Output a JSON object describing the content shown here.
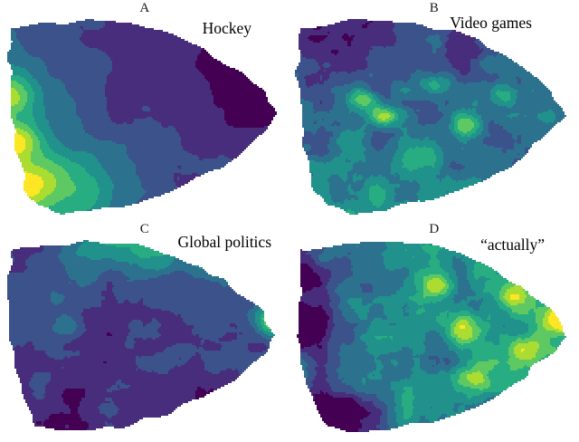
{
  "figure": {
    "background": "#ffffff",
    "description": "Four-panel contour density figure over a shared 2D embedding region, viridis colormap"
  },
  "chart_data": {
    "type": "heatmap",
    "colormap": "viridis",
    "legend": "none",
    "palette": [
      "#440154",
      "#472d7b",
      "#3b528b",
      "#2c728e",
      "#21918c",
      "#27ad81",
      "#5ec962",
      "#aadc32",
      "#fde725"
    ],
    "outline": [
      [
        0.03,
        0.08
      ],
      [
        0.15,
        0.045
      ],
      [
        0.3,
        0.03
      ],
      [
        0.46,
        0.045
      ],
      [
        0.6,
        0.1
      ],
      [
        0.72,
        0.18
      ],
      [
        0.83,
        0.28
      ],
      [
        0.92,
        0.38
      ],
      [
        0.97,
        0.5
      ],
      [
        0.9,
        0.6
      ],
      [
        0.82,
        0.7
      ],
      [
        0.72,
        0.79
      ],
      [
        0.6,
        0.86
      ],
      [
        0.47,
        0.92
      ],
      [
        0.33,
        0.96
      ],
      [
        0.2,
        0.97
      ],
      [
        0.115,
        0.94
      ],
      [
        0.075,
        0.85
      ],
      [
        0.045,
        0.7
      ],
      [
        0.025,
        0.5
      ],
      [
        0.02,
        0.3
      ],
      [
        0.025,
        0.15
      ]
    ],
    "panels": [
      {
        "label": "A",
        "title": "Hockey",
        "summary": "low density top-right (dark), high density along left edge and lower-left (green/yellow)",
        "field": {
          "seed": 7,
          "amp": 0.1,
          "scale": 5,
          "corners": [
            0.28,
            0.02,
            0.55,
            0.1
          ],
          "hotspots": [
            {
              "x": 0.02,
              "y": 0.4,
              "r": 0.1,
              "v": 0.45
            },
            {
              "x": 0.04,
              "y": 0.62,
              "r": 0.09,
              "v": 0.5
            },
            {
              "x": 0.06,
              "y": 0.85,
              "r": 0.12,
              "v": 0.4
            },
            {
              "x": 0.18,
              "y": 0.78,
              "r": 0.14,
              "v": 0.25
            },
            {
              "x": 0.3,
              "y": 0.9,
              "r": 0.12,
              "v": 0.15
            }
          ]
        }
      },
      {
        "label": "B",
        "title": "Video games",
        "summary": "dark top-left corner, speckled medium-high density through the middle with bright spots mid-left",
        "field": {
          "seed": 13,
          "amp": 0.22,
          "scale": 10,
          "corners": [
            0.08,
            0.32,
            0.55,
            0.48
          ],
          "hotspots": [
            {
              "x": 0.25,
              "y": 0.42,
              "r": 0.05,
              "v": 0.5
            },
            {
              "x": 0.33,
              "y": 0.5,
              "r": 0.05,
              "v": 0.4
            },
            {
              "x": 0.2,
              "y": 0.62,
              "r": 0.06,
              "v": 0.3
            },
            {
              "x": 0.5,
              "y": 0.35,
              "r": 0.05,
              "v": 0.3
            },
            {
              "x": 0.62,
              "y": 0.55,
              "r": 0.06,
              "v": 0.28
            },
            {
              "x": 0.45,
              "y": 0.7,
              "r": 0.07,
              "v": 0.25
            },
            {
              "x": 0.75,
              "y": 0.4,
              "r": 0.05,
              "v": 0.25
            }
          ]
        }
      },
      {
        "label": "C",
        "title": "Global politics",
        "summary": "mostly dark low density, greener band along the top edge, bright spot at the right tip",
        "field": {
          "seed": 21,
          "amp": 0.16,
          "scale": 8,
          "corners": [
            0.3,
            0.3,
            0.12,
            0.15
          ],
          "hotspots": [
            {
              "x": 0.35,
              "y": 0.04,
              "r": 0.12,
              "v": 0.25
            },
            {
              "x": 0.55,
              "y": 0.06,
              "r": 0.12,
              "v": 0.28
            },
            {
              "x": 0.75,
              "y": 0.14,
              "r": 0.1,
              "v": 0.25
            },
            {
              "x": 0.96,
              "y": 0.42,
              "r": 0.07,
              "v": 0.55
            },
            {
              "x": 0.22,
              "y": 0.45,
              "r": 0.05,
              "v": 0.22
            }
          ]
        }
      },
      {
        "label": "D",
        "title": "“actually”",
        "summary": "broad high density (green) with yellow hotspots toward the right, dark strip on the left edge and bottom-left",
        "field": {
          "seed": 33,
          "amp": 0.24,
          "scale": 10,
          "corners": [
            0.35,
            0.6,
            0.35,
            0.55
          ],
          "hotspots": [
            {
              "x": 0.95,
              "y": 0.4,
              "r": 0.07,
              "v": 0.5
            },
            {
              "x": 0.78,
              "y": 0.3,
              "r": 0.06,
              "v": 0.35
            },
            {
              "x": 0.82,
              "y": 0.55,
              "r": 0.06,
              "v": 0.35
            },
            {
              "x": 0.6,
              "y": 0.45,
              "r": 0.08,
              "v": 0.3
            },
            {
              "x": 0.65,
              "y": 0.7,
              "r": 0.07,
              "v": 0.3
            },
            {
              "x": 0.5,
              "y": 0.25,
              "r": 0.07,
              "v": 0.25
            },
            {
              "x": 0.02,
              "y": 0.45,
              "r": 0.12,
              "v": -0.5
            },
            {
              "x": 0.06,
              "y": 0.2,
              "r": 0.1,
              "v": -0.35
            },
            {
              "x": 0.12,
              "y": 0.9,
              "r": 0.15,
              "v": -0.45
            }
          ]
        }
      }
    ]
  }
}
